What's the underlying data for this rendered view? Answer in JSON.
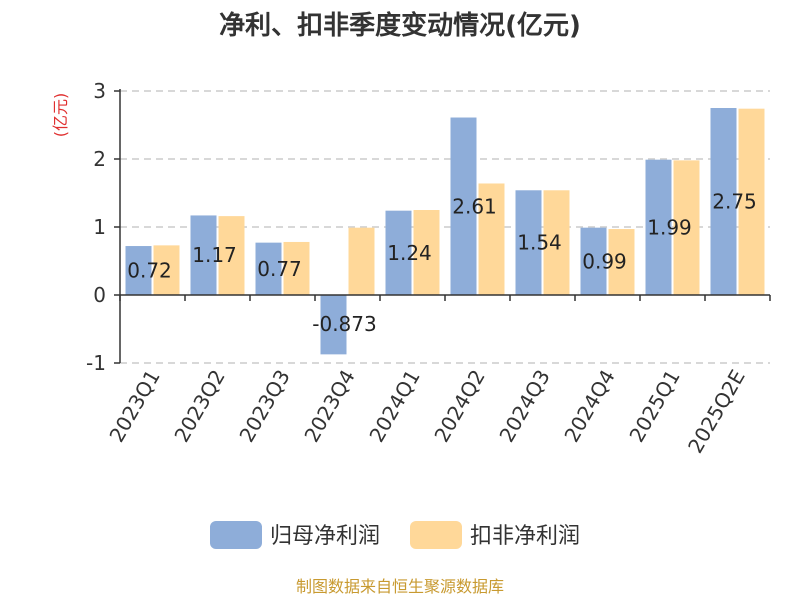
{
  "chart_data": {
    "type": "bar",
    "title": "净利、扣非季度变动情况(亿元)",
    "unit_label": "(亿元)",
    "categories": [
      "2023Q1",
      "2023Q2",
      "2023Q3",
      "2023Q4",
      "2024Q1",
      "2024Q2",
      "2024Q3",
      "2024Q4",
      "2025Q1",
      "2025Q2E"
    ],
    "series": [
      {
        "name": "归母净利润",
        "color": "#8eadd9",
        "values": [
          0.72,
          1.17,
          0.77,
          -0.873,
          1.24,
          2.61,
          1.54,
          0.99,
          1.99,
          2.75
        ],
        "labels": [
          "0.72",
          "1.17",
          "0.77",
          "-0.873",
          "1.24",
          "2.61",
          "1.54",
          "0.99",
          "1.99",
          "2.75"
        ]
      },
      {
        "name": "扣非净利润",
        "color": "#ffd899",
        "values": [
          0.73,
          1.16,
          0.78,
          0.99,
          1.25,
          1.64,
          1.54,
          0.97,
          1.98,
          2.74
        ]
      }
    ],
    "ylim": [
      -1,
      3
    ],
    "yticks": [
      "-1",
      "0",
      "1",
      "2",
      "3"
    ],
    "grid": true,
    "legend_position": "bottom"
  },
  "source": "制图数据来自恒生聚源数据库"
}
